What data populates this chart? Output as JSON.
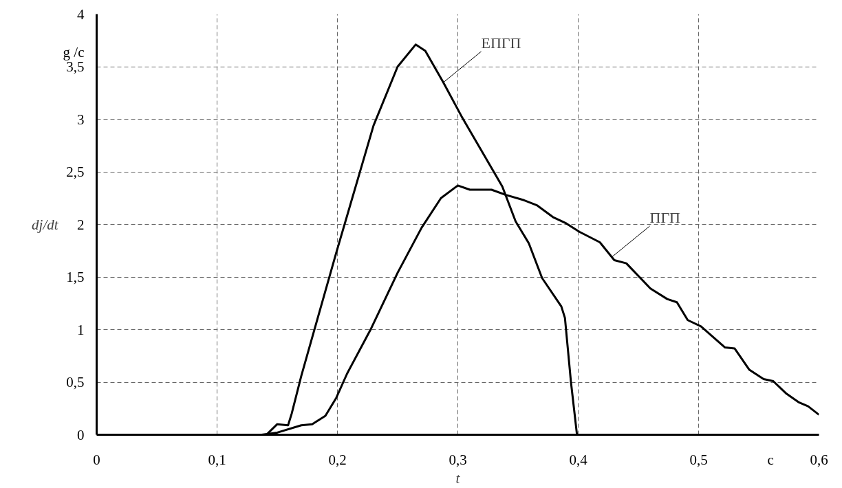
{
  "chart_data": {
    "type": "line",
    "xlabel": "t",
    "ylabel": "dj/dt",
    "annotations": [
      "g /c",
      "c",
      {
        "text": "ЕПГП",
        "x": 0.288,
        "y": 3.35
      },
      {
        "text": "ПГП",
        "x": 0.428,
        "y": 1.69
      }
    ],
    "series": [
      {
        "color": "#000000",
        "x": [
          0,
          0.141,
          0.15,
          0.159,
          0.162,
          0.17,
          0.199,
          0.23,
          0.25,
          0.265,
          0.273,
          0.288,
          0.303,
          0.337,
          0.348,
          0.359,
          0.37,
          0.386,
          0.389,
          0.394,
          0.399,
          0.6
        ],
        "values": [
          0,
          0,
          0.1,
          0.09,
          0.2,
          0.56,
          1.73,
          2.94,
          3.5,
          3.71,
          3.65,
          3.35,
          3.03,
          2.36,
          2.03,
          1.82,
          1.49,
          1.22,
          1.11,
          0.5,
          0,
          0
        ]
      },
      {
        "color": "#000000",
        "x": [
          0.137,
          0.15,
          0.17,
          0.179,
          0.19,
          0.199,
          0.208,
          0.228,
          0.25,
          0.27,
          0.286,
          0.3,
          0.31,
          0.328,
          0.34,
          0.355,
          0.366,
          0.379,
          0.39,
          0.401,
          0.418,
          0.43,
          0.44,
          0.46,
          0.474,
          0.482,
          0.491,
          0.502,
          0.522,
          0.53,
          0.542,
          0.554,
          0.562,
          0.573,
          0.583,
          0.591,
          0.6
        ],
        "values": [
          0,
          0.02,
          0.09,
          0.1,
          0.18,
          0.35,
          0.58,
          1.01,
          1.54,
          1.97,
          2.25,
          2.37,
          2.33,
          2.33,
          2.28,
          2.23,
          2.18,
          2.07,
          2.01,
          1.93,
          1.83,
          1.66,
          1.63,
          1.39,
          1.29,
          1.26,
          1.09,
          1.03,
          0.83,
          0.82,
          0.62,
          0.53,
          0.51,
          0.39,
          0.31,
          0.27,
          0.19
        ]
      }
    ],
    "xlim": [
      0,
      0.6
    ],
    "ylim": [
      0,
      4
    ],
    "xticks": [
      0,
      {
        "value": 0.1,
        "label": "0,1"
      },
      {
        "value": 0.2,
        "label": "0,2"
      },
      {
        "value": 0.3,
        "label": "0,3"
      },
      {
        "value": 0.4,
        "label": "0,4"
      },
      {
        "value": 0.5,
        "label": "0,5"
      },
      {
        "value": 0.6,
        "label": "0,6"
      }
    ],
    "yticks": [
      0,
      {
        "value": 0.5,
        "label": "0,5"
      },
      1,
      {
        "value": 1.5,
        "label": "1,5"
      },
      2,
      {
        "value": 2.5,
        "label": "2,5"
      },
      3,
      {
        "value": 3.5,
        "label": "3,5"
      },
      4
    ],
    "grid": true,
    "marker": "none",
    "line_style": "solid"
  }
}
